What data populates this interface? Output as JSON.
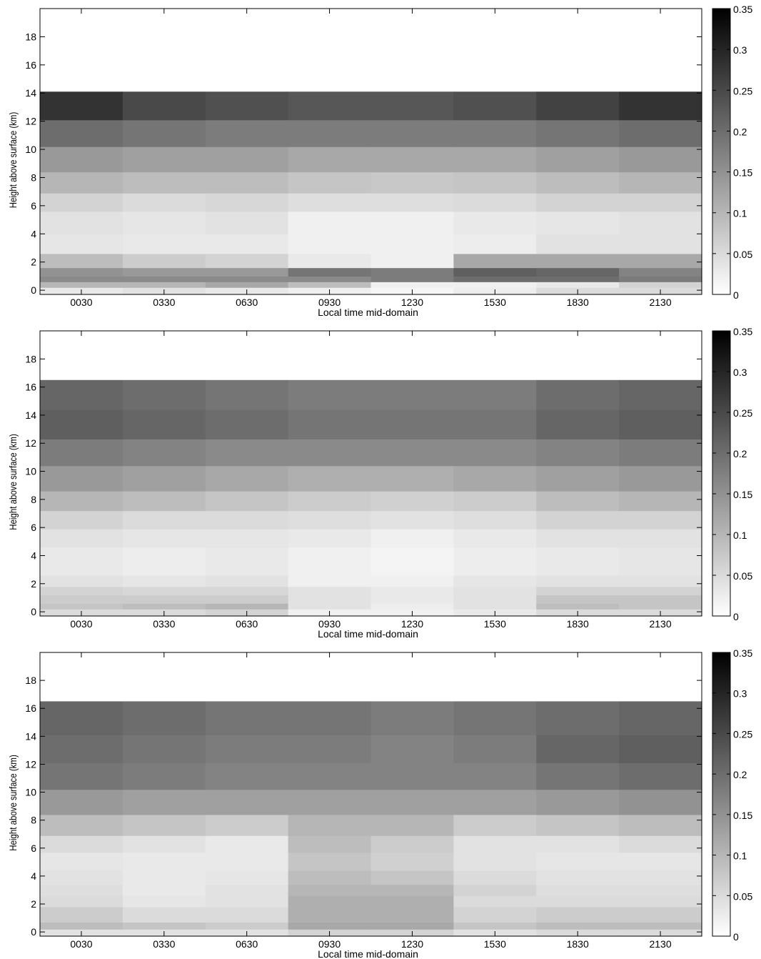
{
  "chart_data": [
    {
      "type": "heatmap",
      "title": "",
      "xlabel": "Local time mid-domain",
      "ylabel": "Height above surface (km)",
      "x_categories": [
        "0030",
        "0330",
        "0630",
        "0930",
        "1230",
        "1530",
        "1830",
        "2130"
      ],
      "xlim": [
        0,
        24
      ],
      "ylim": [
        -0.3,
        20
      ],
      "y_ticks": [
        0,
        2,
        4,
        6,
        8,
        10,
        12,
        14,
        16,
        18
      ],
      "y_bins_km": [
        [
          -0.3,
          0.2
        ],
        [
          0.2,
          0.6
        ],
        [
          0.6,
          1.0
        ],
        [
          1.0,
          1.6
        ],
        [
          1.6,
          2.6
        ],
        [
          2.6,
          4.0
        ],
        [
          4.0,
          5.6
        ],
        [
          5.6,
          6.9
        ],
        [
          6.9,
          8.4
        ],
        [
          8.4,
          10.2
        ],
        [
          10.2,
          12.1
        ],
        [
          12.1,
          14.1
        ]
      ],
      "colorbar": {
        "min": 0,
        "max": 0.35,
        "ticks": [
          0,
          0.05,
          0.1,
          0.15,
          0.2,
          0.25,
          0.3,
          0.35
        ]
      },
      "values": [
        [
          0.03,
          0.04,
          0.03,
          0.02,
          0.012,
          0.025,
          0.05,
          0.05
        ],
        [
          0.1,
          0.1,
          0.12,
          0.09,
          0.02,
          0.02,
          0.03,
          0.06
        ],
        [
          0.16,
          0.16,
          0.16,
          0.16,
          0.18,
          0.2,
          0.2,
          0.18
        ],
        [
          0.15,
          0.14,
          0.14,
          0.19,
          0.18,
          0.22,
          0.21,
          0.17
        ],
        [
          0.09,
          0.07,
          0.06,
          0.03,
          0.02,
          0.12,
          0.12,
          0.12
        ],
        [
          0.035,
          0.03,
          0.03,
          0.02,
          0.02,
          0.025,
          0.04,
          0.04
        ],
        [
          0.04,
          0.035,
          0.04,
          0.02,
          0.02,
          0.03,
          0.035,
          0.04
        ],
        [
          0.06,
          0.05,
          0.055,
          0.045,
          0.045,
          0.05,
          0.06,
          0.06
        ],
        [
          0.1,
          0.09,
          0.09,
          0.08,
          0.075,
          0.08,
          0.09,
          0.1
        ],
        [
          0.14,
          0.13,
          0.13,
          0.12,
          0.12,
          0.12,
          0.13,
          0.14
        ],
        [
          0.2,
          0.19,
          0.18,
          0.18,
          0.18,
          0.18,
          0.19,
          0.2
        ],
        [
          0.28,
          0.25,
          0.24,
          0.23,
          0.23,
          0.24,
          0.26,
          0.28
        ]
      ]
    },
    {
      "type": "heatmap",
      "title": "",
      "xlabel": "Local time mid-domain",
      "ylabel": "Height above surface (km)",
      "x_categories": [
        "0030",
        "0330",
        "0630",
        "0930",
        "1230",
        "1530",
        "1830",
        "2130"
      ],
      "xlim": [
        0,
        24
      ],
      "ylim": [
        -0.3,
        20
      ],
      "y_ticks": [
        0,
        2,
        4,
        6,
        8,
        10,
        12,
        14,
        16,
        18
      ],
      "y_bins_km": [
        [
          -0.3,
          0.2
        ],
        [
          0.2,
          0.6
        ],
        [
          0.6,
          1.2
        ],
        [
          1.2,
          1.8
        ],
        [
          1.8,
          2.6
        ],
        [
          2.6,
          4.6
        ],
        [
          4.6,
          5.9
        ],
        [
          5.9,
          7.2
        ],
        [
          7.2,
          8.6
        ],
        [
          8.6,
          10.4
        ],
        [
          10.4,
          12.3
        ],
        [
          12.3,
          14.4
        ],
        [
          14.4,
          16.5
        ]
      ],
      "colorbar": {
        "min": 0,
        "max": 0.35,
        "ticks": [
          0,
          0.05,
          0.1,
          0.15,
          0.2,
          0.25,
          0.3,
          0.35
        ]
      },
      "values": [
        [
          0.05,
          0.05,
          0.06,
          0.02,
          0.02,
          0.03,
          0.05,
          0.05
        ],
        [
          0.08,
          0.09,
          0.1,
          0.04,
          0.025,
          0.04,
          0.09,
          0.08
        ],
        [
          0.07,
          0.07,
          0.07,
          0.04,
          0.03,
          0.04,
          0.08,
          0.08
        ],
        [
          0.06,
          0.055,
          0.055,
          0.04,
          0.03,
          0.04,
          0.06,
          0.06
        ],
        [
          0.04,
          0.035,
          0.04,
          0.02,
          0.02,
          0.035,
          0.04,
          0.04
        ],
        [
          0.03,
          0.025,
          0.03,
          0.02,
          0.015,
          0.025,
          0.03,
          0.035
        ],
        [
          0.04,
          0.035,
          0.035,
          0.03,
          0.02,
          0.03,
          0.04,
          0.04
        ],
        [
          0.06,
          0.05,
          0.05,
          0.045,
          0.04,
          0.045,
          0.06,
          0.06
        ],
        [
          0.1,
          0.09,
          0.08,
          0.07,
          0.065,
          0.07,
          0.09,
          0.1
        ],
        [
          0.14,
          0.13,
          0.12,
          0.11,
          0.11,
          0.12,
          0.13,
          0.14
        ],
        [
          0.18,
          0.17,
          0.16,
          0.16,
          0.16,
          0.16,
          0.17,
          0.18
        ],
        [
          0.22,
          0.21,
          0.2,
          0.19,
          0.19,
          0.19,
          0.21,
          0.22
        ],
        [
          0.21,
          0.2,
          0.19,
          0.18,
          0.18,
          0.18,
          0.2,
          0.21
        ]
      ]
    },
    {
      "type": "heatmap",
      "title": "",
      "xlabel": "Local time mid-domain",
      "ylabel": "Height above surface (km)",
      "x_categories": [
        "0030",
        "0330",
        "0630",
        "0930",
        "1230",
        "1530",
        "1830",
        "2130"
      ],
      "xlim": [
        0,
        24
      ],
      "ylim": [
        -0.3,
        20
      ],
      "y_ticks": [
        0,
        2,
        4,
        6,
        8,
        10,
        12,
        14,
        16,
        18
      ],
      "y_bins_km": [
        [
          -0.3,
          0.2
        ],
        [
          0.2,
          0.7
        ],
        [
          0.7,
          1.8
        ],
        [
          1.8,
          2.6
        ],
        [
          2.6,
          3.4
        ],
        [
          3.4,
          4.4
        ],
        [
          4.4,
          5.7
        ],
        [
          5.7,
          6.9
        ],
        [
          6.9,
          8.4
        ],
        [
          8.4,
          10.2
        ],
        [
          10.2,
          12.1
        ],
        [
          12.1,
          14.1
        ],
        [
          14.1,
          16.5
        ]
      ],
      "colorbar": {
        "min": 0,
        "max": 0.35,
        "ticks": [
          0,
          0.05,
          0.1,
          0.15,
          0.2,
          0.25,
          0.3,
          0.35
        ]
      },
      "values": [
        [
          0.04,
          0.04,
          0.04,
          0.06,
          0.06,
          0.04,
          0.05,
          0.05
        ],
        [
          0.09,
          0.08,
          0.07,
          0.12,
          0.12,
          0.08,
          0.09,
          0.09
        ],
        [
          0.07,
          0.05,
          0.05,
          0.11,
          0.11,
          0.06,
          0.07,
          0.07
        ],
        [
          0.05,
          0.035,
          0.04,
          0.11,
          0.11,
          0.05,
          0.05,
          0.05
        ],
        [
          0.045,
          0.03,
          0.04,
          0.1,
          0.1,
          0.06,
          0.045,
          0.045
        ],
        [
          0.04,
          0.03,
          0.035,
          0.09,
          0.08,
          0.05,
          0.04,
          0.04
        ],
        [
          0.035,
          0.03,
          0.03,
          0.08,
          0.065,
          0.04,
          0.035,
          0.035
        ],
        [
          0.05,
          0.04,
          0.03,
          0.09,
          0.07,
          0.04,
          0.04,
          0.05
        ],
        [
          0.09,
          0.08,
          0.07,
          0.1,
          0.1,
          0.07,
          0.08,
          0.09
        ],
        [
          0.14,
          0.13,
          0.13,
          0.13,
          0.13,
          0.13,
          0.14,
          0.15
        ],
        [
          0.19,
          0.18,
          0.17,
          0.17,
          0.17,
          0.17,
          0.19,
          0.2
        ],
        [
          0.2,
          0.19,
          0.18,
          0.18,
          0.17,
          0.18,
          0.21,
          0.22
        ],
        [
          0.21,
          0.2,
          0.19,
          0.19,
          0.18,
          0.19,
          0.2,
          0.21
        ]
      ]
    }
  ]
}
